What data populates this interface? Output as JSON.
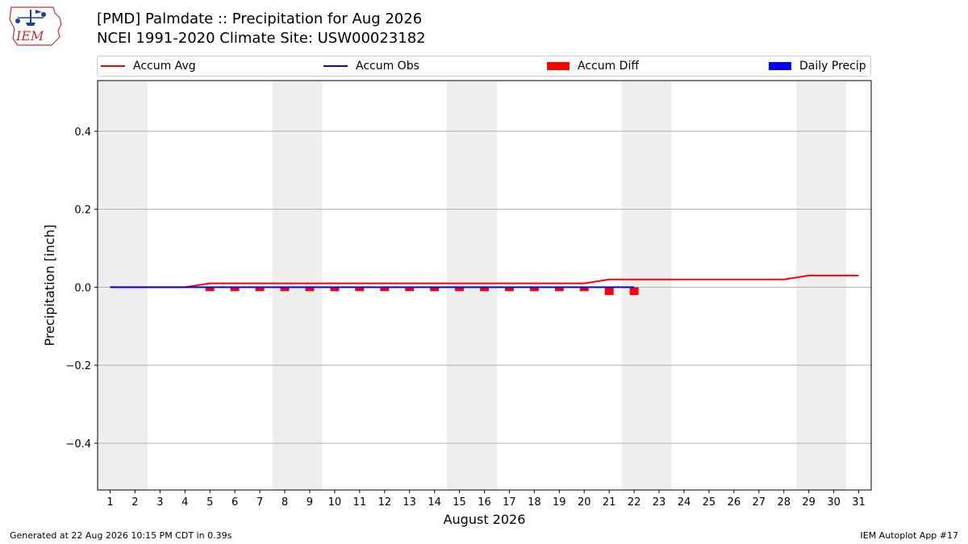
{
  "header": {
    "logo_text": "IEM",
    "title_line1": "[PMD] Palmdate :: Precipitation for Aug 2026",
    "title_line2": "NCEI 1991-2020 Climate Site: USW00023182"
  },
  "legend": [
    {
      "label": "Accum Avg",
      "kind": "line",
      "color": "#ff0000"
    },
    {
      "label": "Accum Obs",
      "kind": "line",
      "color": "#0000ff"
    },
    {
      "label": "Accum Diff",
      "kind": "box",
      "color": "#ff0000"
    },
    {
      "label": "Daily Precip",
      "kind": "box",
      "color": "#0000ff"
    }
  ],
  "chart_data": {
    "type": "line",
    "xlabel": "August 2026",
    "ylabel": "Precipitation [inch]",
    "xlim": [
      0.5,
      31.5
    ],
    "ylim": [
      -0.52,
      0.53
    ],
    "yticks": [
      -0.4,
      -0.2,
      0.0,
      0.2,
      0.4
    ],
    "ytick_labels": [
      "−0.4",
      "−0.2",
      "0.0",
      "0.2",
      "0.4"
    ],
    "x": [
      1,
      2,
      3,
      4,
      5,
      6,
      7,
      8,
      9,
      10,
      11,
      12,
      13,
      14,
      15,
      16,
      17,
      18,
      19,
      20,
      21,
      22,
      23,
      24,
      25,
      26,
      27,
      28,
      29,
      30,
      31
    ],
    "weekend_bands": [
      [
        0.5,
        2.5
      ],
      [
        7.5,
        9.5
      ],
      [
        14.5,
        16.5
      ],
      [
        21.5,
        23.5
      ],
      [
        28.5,
        30.5
      ]
    ],
    "grid": true,
    "series": [
      {
        "name": "Accum Avg",
        "kind": "line",
        "color": "#ff0000",
        "x": [
          1,
          2,
          3,
          4,
          5,
          6,
          7,
          8,
          9,
          10,
          11,
          12,
          13,
          14,
          15,
          16,
          17,
          18,
          19,
          20,
          21,
          22,
          23,
          24,
          25,
          26,
          27,
          28,
          29,
          30,
          31
        ],
        "values": [
          0,
          0,
          0,
          0,
          0.01,
          0.01,
          0.01,
          0.01,
          0.01,
          0.01,
          0.01,
          0.01,
          0.01,
          0.01,
          0.01,
          0.01,
          0.01,
          0.01,
          0.01,
          0.01,
          0.02,
          0.02,
          0.02,
          0.02,
          0.02,
          0.02,
          0.02,
          0.02,
          0.03,
          0.03,
          0.03
        ]
      },
      {
        "name": "Accum Obs",
        "kind": "line",
        "color": "#0000ff",
        "x": [
          1,
          2,
          3,
          4,
          5,
          6,
          7,
          8,
          9,
          10,
          11,
          12,
          13,
          14,
          15,
          16,
          17,
          18,
          19,
          20,
          21,
          22
        ],
        "values": [
          0,
          0,
          0,
          0,
          0,
          0,
          0,
          0,
          0,
          0,
          0,
          0,
          0,
          0,
          0,
          0,
          0,
          0,
          0,
          0,
          0,
          0
        ]
      },
      {
        "name": "Accum Diff",
        "kind": "bar",
        "color": "#ff0000",
        "x": [
          1,
          2,
          3,
          4,
          5,
          6,
          7,
          8,
          9,
          10,
          11,
          12,
          13,
          14,
          15,
          16,
          17,
          18,
          19,
          20,
          21,
          22
        ],
        "values": [
          0,
          0,
          0,
          0,
          -0.01,
          -0.01,
          -0.01,
          -0.01,
          -0.01,
          -0.01,
          -0.01,
          -0.01,
          -0.01,
          -0.01,
          -0.01,
          -0.01,
          -0.01,
          -0.01,
          -0.01,
          -0.01,
          -0.02,
          -0.02
        ]
      },
      {
        "name": "Daily Precip",
        "kind": "bar",
        "color": "#0000ff",
        "x": [
          1,
          2,
          3,
          4,
          5,
          6,
          7,
          8,
          9,
          10,
          11,
          12,
          13,
          14,
          15,
          16,
          17,
          18,
          19,
          20,
          21,
          22
        ],
        "values": [
          0,
          0,
          0,
          0,
          0,
          0,
          0,
          0,
          0,
          0,
          0,
          0,
          0,
          0,
          0,
          0,
          0,
          0,
          0,
          0,
          0,
          0
        ]
      }
    ]
  },
  "footer": {
    "generated": "Generated at 22 Aug 2026 10:15 PM CDT in 0.39s",
    "app": "IEM Autoplot App #17"
  }
}
